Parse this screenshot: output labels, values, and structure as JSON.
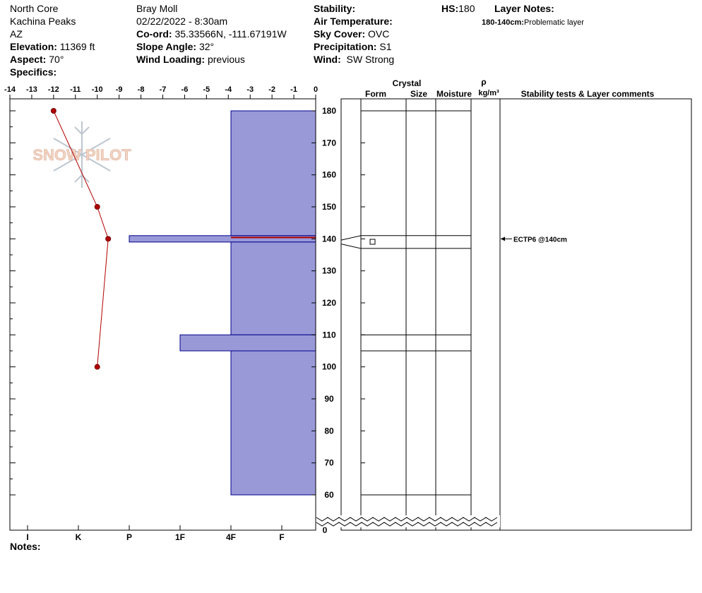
{
  "header": {
    "site": "North Core",
    "area": "Kachina Peaks",
    "state": "AZ",
    "elevation_label": "Elevation:",
    "elevation_value": "11369 ft",
    "aspect_label": "Aspect:",
    "aspect_value": "70°",
    "specifics_label": "Specifics:",
    "observer": "Bray Moll",
    "datetime": "02/22/2022 - 8:30am",
    "coord_label": "Co-ord:",
    "coord_value": "35.33566N, -111.67191W",
    "slope_label": "Slope Angle:",
    "slope_value": "32°",
    "wind_loading_label": "Wind Loading:",
    "wind_loading_value": "previous",
    "stability_label": "Stability:",
    "air_temp_label": "Air Temperature:",
    "sky_label": "Sky Cover:",
    "sky_value": "OVC",
    "precip_label": "Precipitation:",
    "precip_value": "S1",
    "wind_label": "Wind:",
    "wind_value": "SW Strong",
    "hs_label": "HS:",
    "hs_value": "180",
    "layer_notes_label": "Layer Notes:",
    "layer_note_range": "180-140cm:",
    "layer_note_text": "Problematic layer",
    "notes_label": "Notes:"
  },
  "columns": {
    "crystal": "Crystal",
    "form": "Form",
    "size": "Size",
    "moisture": "Moisture",
    "rho": "ρ",
    "density_unit": "kg/m³",
    "comments": "Stability tests & Layer comments"
  },
  "logo_text": "SNOW PILOT",
  "stability_test": "ECTP6 @140cm",
  "colors": {
    "hardness_fill": "#9999d8",
    "hardness_stroke": "#00008b",
    "temp_line": "#b00000",
    "weak_layer": "#b00000"
  },
  "chart_data": {
    "type": "snow-profile",
    "temp_axis": {
      "ticks": [
        -14,
        -13,
        -12,
        -11,
        -10,
        -9,
        -8,
        -7,
        -6,
        -5,
        -4,
        -3,
        -2,
        -1,
        0
      ],
      "range": [
        -14,
        0
      ]
    },
    "hardness_axis": {
      "labels": [
        "I",
        "K",
        "P",
        "1F",
        "4F",
        "F"
      ]
    },
    "depth_axis": {
      "ticks": [
        180,
        170,
        160,
        150,
        140,
        130,
        120,
        110,
        100,
        90,
        80,
        70,
        60
      ],
      "break_tick": 0,
      "range": [
        58,
        182
      ]
    },
    "temperature_profile": [
      {
        "depth": 180,
        "temp": -12
      },
      {
        "depth": 150,
        "temp": -10
      },
      {
        "depth": 140,
        "temp": -9.5
      },
      {
        "depth": 100,
        "temp": -10
      }
    ],
    "layers": [
      {
        "top": 180,
        "bottom": 141,
        "hardness": "4F"
      },
      {
        "top": 141,
        "bottom": 139,
        "hardness": "P",
        "grain": "square"
      },
      {
        "top": 139,
        "bottom": 110,
        "hardness": "4F"
      },
      {
        "top": 110,
        "bottom": 105,
        "hardness": "1F"
      },
      {
        "top": 105,
        "bottom": 60,
        "hardness": "4F"
      }
    ],
    "weak_layer_depth": 140,
    "stability_test_depth": 140
  }
}
